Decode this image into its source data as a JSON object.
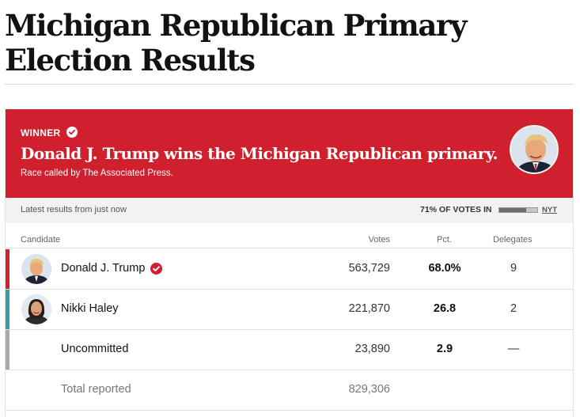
{
  "page": {
    "headline": "Michigan Republican Primary Election Results"
  },
  "banner": {
    "tag": "WINNER",
    "title": "Donald J. Trump wins the Michigan Republican primary.",
    "subtitle": "Race called by The Associated Press.",
    "background_color": "#d0202e"
  },
  "status": {
    "latest": "Latest results from just now",
    "votes_in_label": "71% OF VOTES IN",
    "votes_in_fraction": 0.71,
    "source_link": "NYT"
  },
  "table": {
    "headers": {
      "candidate": "Candidate",
      "votes": "Votes",
      "pct": "Pct.",
      "delegates": "Delegates"
    },
    "rows": [
      {
        "name": "Donald J. Trump",
        "votes": "563,729",
        "pct": "68.0%",
        "delegates": "9",
        "color": "#d0202e",
        "winner": true,
        "icon": "candidate-photo"
      },
      {
        "name": "Nikki Haley",
        "votes": "221,870",
        "pct": "26.8",
        "delegates": "2",
        "color": "#3a9d9d",
        "winner": false,
        "icon": "candidate-photo"
      },
      {
        "name": "Uncommitted",
        "votes": "23,890",
        "pct": "2.9",
        "delegates": "—",
        "color": "#a9a9a9",
        "winner": false
      }
    ],
    "total": {
      "label": "Total reported",
      "votes": "829,306"
    }
  }
}
